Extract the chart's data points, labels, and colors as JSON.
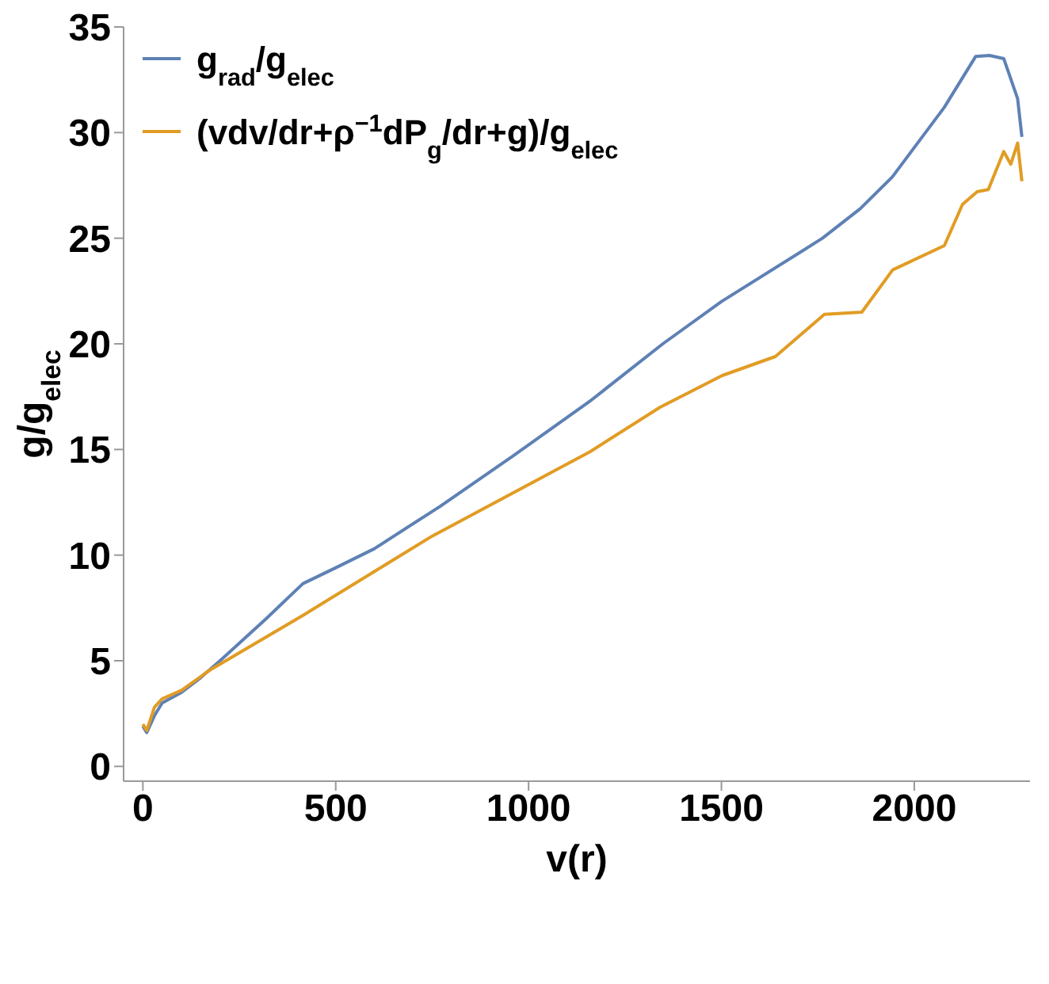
{
  "chart_data": {
    "type": "line",
    "xlabel": "v(r)",
    "ylabel": "g/g$_{elec}$",
    "xlim": [
      -50,
      2300
    ],
    "ylim": [
      -0.7,
      35
    ],
    "xticks": [
      0,
      500,
      1000,
      1500,
      2000
    ],
    "yticks": [
      0,
      5,
      10,
      15,
      20,
      25,
      30,
      35
    ],
    "legend": "top left",
    "marker": "none",
    "line_style": "solid",
    "series": [
      {
        "name": "g$_{rad}$/g$_{elec}$",
        "color": "#5e81b5",
        "x": [
          0,
          10,
          30,
          50,
          100,
          150,
          200,
          320,
          415,
          500,
          600,
          770,
          960,
          1160,
          1348,
          1500,
          1762,
          1860,
          1943,
          2078,
          2159,
          2195,
          2232,
          2268,
          2279
        ],
        "values": [
          1.9,
          1.6,
          2.4,
          3.0,
          3.5,
          4.2,
          5.0,
          7.0,
          8.65,
          9.4,
          10.3,
          12.3,
          14.7,
          17.3,
          20.0,
          22.0,
          25.0,
          26.4,
          27.9,
          31.2,
          33.6,
          33.65,
          33.5,
          31.6,
          29.8
        ]
      },
      {
        "name": "(vdv/dr+ρ$^{−1}$dP$_{g}$/dr+g)/g$_{elec}$",
        "color": "#e19c24",
        "x": [
          0,
          10,
          30,
          50,
          100,
          173,
          415,
          750,
          1160,
          1341,
          1502,
          1640,
          1767,
          1864,
          1944,
          2078,
          2125,
          2163,
          2192,
          2232,
          2250,
          2268,
          2279
        ],
        "values": [
          2.0,
          1.7,
          2.8,
          3.2,
          3.6,
          4.55,
          7.15,
          10.9,
          14.9,
          17.0,
          18.5,
          19.4,
          21.4,
          21.5,
          23.5,
          24.65,
          26.6,
          27.2,
          27.3,
          29.1,
          28.5,
          29.5,
          27.7
        ]
      }
    ]
  }
}
